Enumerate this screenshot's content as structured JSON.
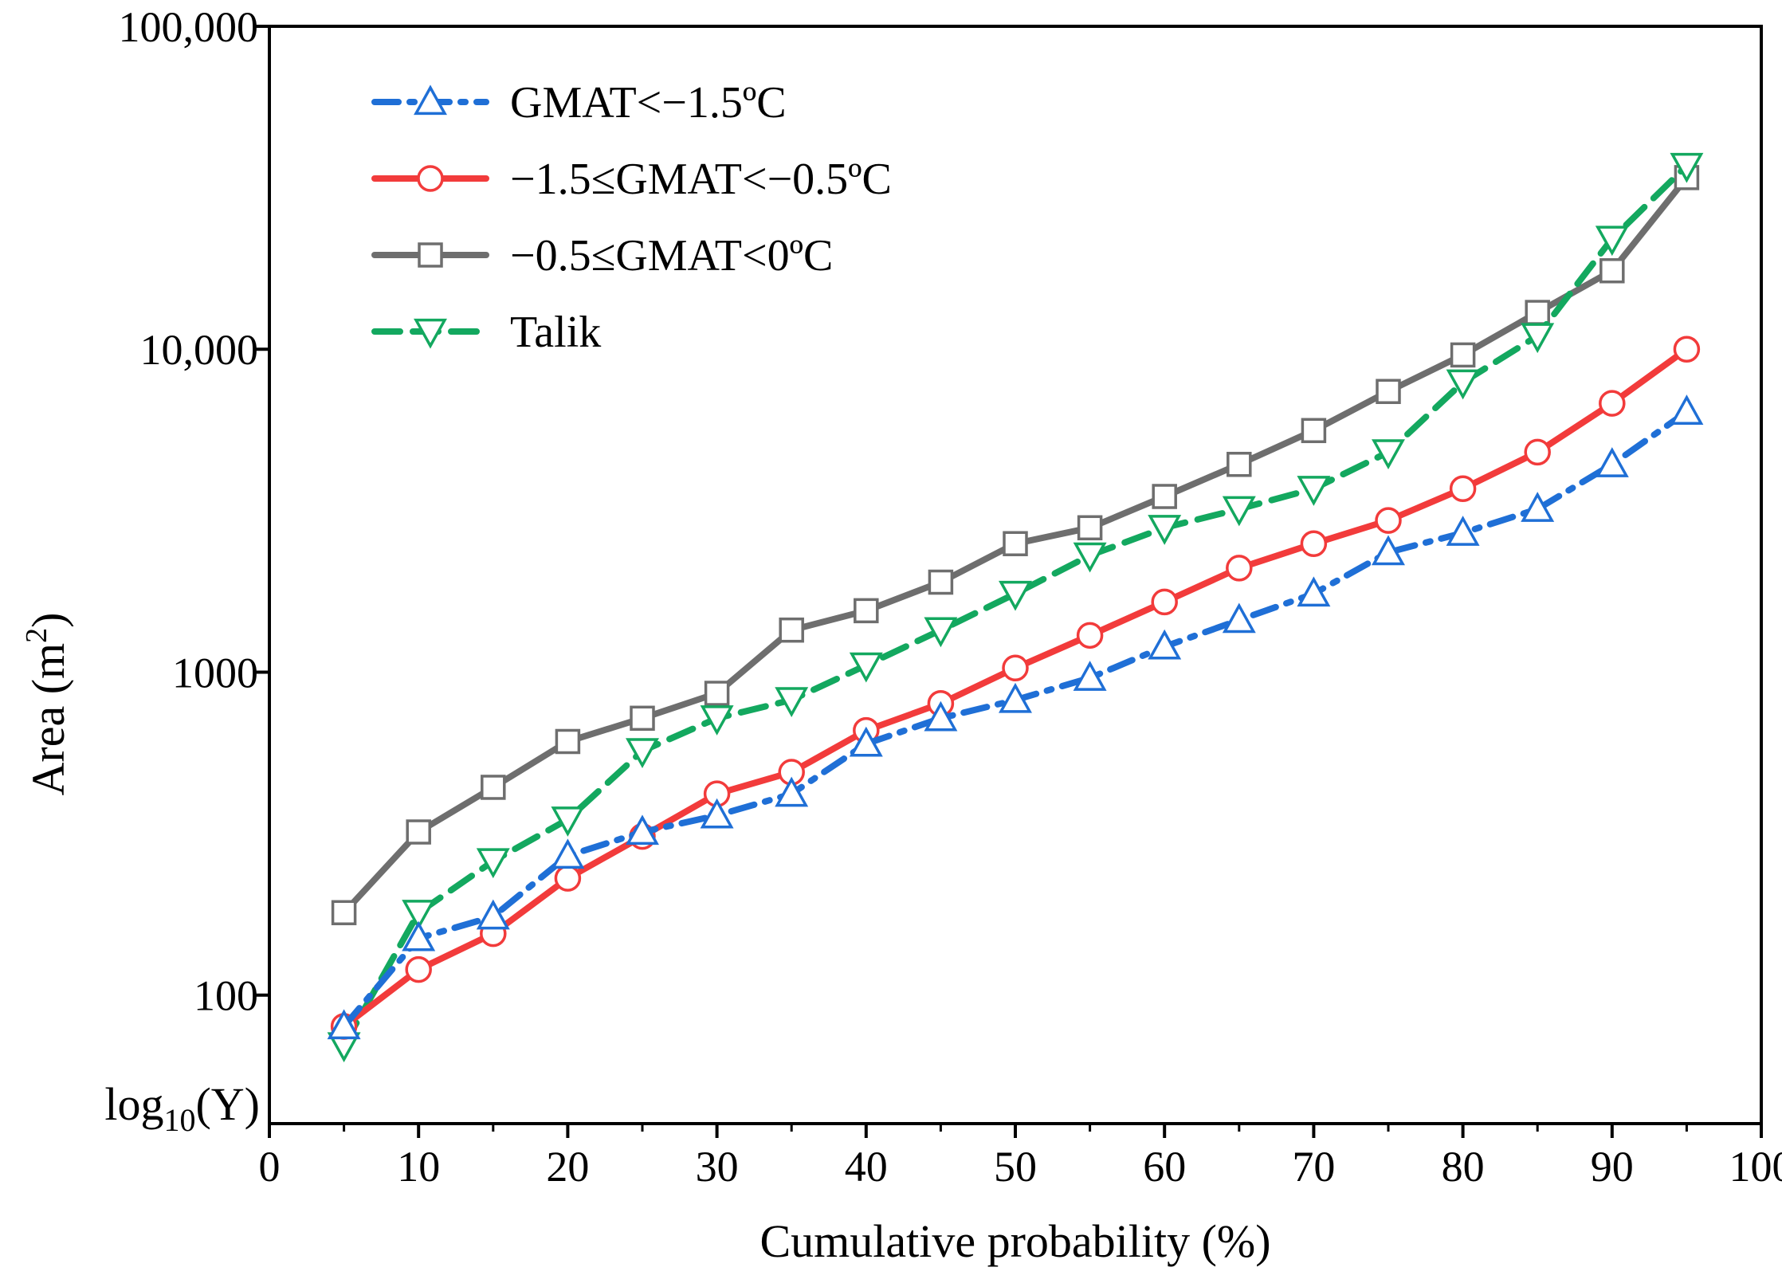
{
  "chart_data": {
    "type": "line",
    "title": "",
    "xlabel": "Cumulative probability (%)",
    "ylabel_text": "Area (m",
    "ylabel_sup": "2",
    "ylabel_close": ")",
    "ylabel": "Area (m2)",
    "yscale": "log",
    "xlim": [
      0,
      100
    ],
    "ylim": [
      40,
      100000
    ],
    "x_ticks": [
      0,
      10,
      20,
      30,
      40,
      50,
      60,
      70,
      80,
      90,
      100
    ],
    "x_tick_labels": [
      "0",
      "10",
      "20",
      "30",
      "40",
      "50",
      "60",
      "70",
      "80",
      "90",
      "100"
    ],
    "y_ticks": [
      100,
      1000,
      10000,
      100000
    ],
    "y_tick_labels": [
      "100",
      "1000",
      "10,000",
      "100,000"
    ],
    "log_label": {
      "base": "log",
      "sub": "10",
      "rest": "(Y)"
    },
    "legend_position": "top-left",
    "grid": false,
    "x": [
      5,
      10,
      15,
      20,
      25,
      30,
      35,
      40,
      45,
      50,
      55,
      60,
      65,
      70,
      75,
      80,
      85,
      90,
      95
    ],
    "series": [
      {
        "name": "GMAT<−1.5ºC",
        "color": "#1f6fd6",
        "marker": "triangle-up",
        "dash": "dashdot",
        "values": [
          80,
          150,
          175,
          270,
          320,
          360,
          420,
          600,
          720,
          820,
          960,
          1200,
          1450,
          1750,
          2350,
          2700,
          3200,
          4400,
          6400
        ]
      },
      {
        "name": "−1.5≤GMAT<−0.5ºC",
        "color": "#f23b3b",
        "marker": "circle",
        "dash": "solid",
        "values": [
          80,
          120,
          155,
          230,
          310,
          420,
          490,
          660,
          800,
          1030,
          1300,
          1650,
          2100,
          2500,
          2950,
          3700,
          4800,
          6800,
          10000
        ]
      },
      {
        "name": "−0.5≤GMAT<0ºC",
        "color": "#6e6e6e",
        "marker": "square",
        "dash": "solid",
        "values": [
          180,
          320,
          440,
          610,
          720,
          860,
          1350,
          1550,
          1900,
          2500,
          2800,
          3500,
          4400,
          5600,
          7400,
          9600,
          13000,
          17500,
          34000
        ]
      },
      {
        "name": "Talik",
        "color": "#13a85f",
        "marker": "triangle-down",
        "dash": "dashed",
        "values": [
          70,
          180,
          260,
          350,
          570,
          720,
          820,
          1050,
          1350,
          1750,
          2300,
          2800,
          3200,
          3700,
          4800,
          7900,
          11000,
          22000,
          37000
        ]
      }
    ]
  }
}
